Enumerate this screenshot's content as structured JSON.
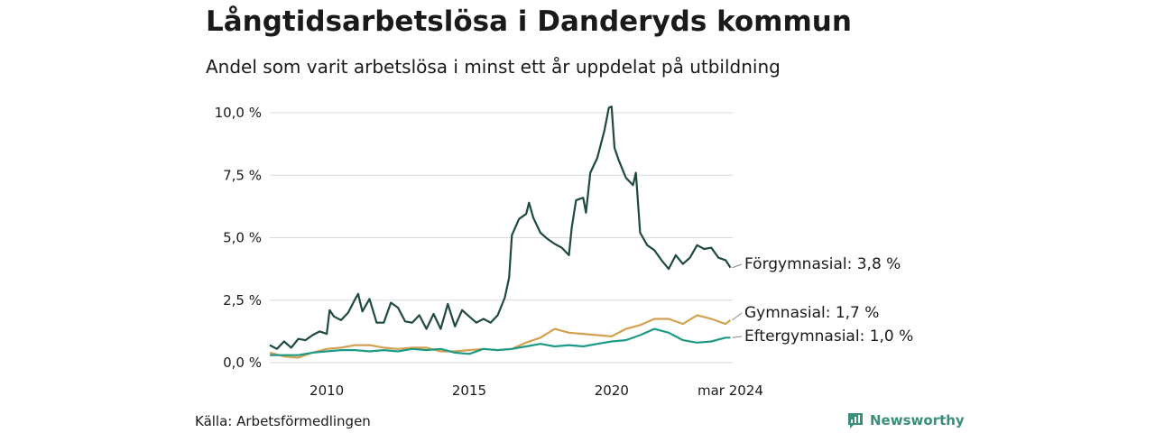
{
  "title": "Långtidsarbetslösa i Danderyds kommun",
  "subtitle": "Andel som varit arbetslösa i minst ett år uppdelat på utbildning",
  "source": "Källa: Arbetsförmedlingen",
  "brand": "Newsworthy",
  "colors": {
    "forgymnasial": "#1f4a3e",
    "gymnasial": "#d4a050",
    "eftergymnasial": "#1d9a86",
    "grid": "#d9d9d9",
    "brand": "#3a8f7a"
  },
  "chart_data": {
    "type": "line",
    "title": "Långtidsarbetslösa i Danderyds kommun",
    "subtitle": "Andel som varit arbetslösa i minst ett år uppdelat på utbildning",
    "xlabel": "",
    "ylabel": "",
    "xlim": [
      2008.0,
      2024.25
    ],
    "ylim": [
      0,
      10
    ],
    "y_ticks": [
      0,
      2.5,
      5,
      7.5,
      10
    ],
    "y_tick_labels": [
      "0,0 %",
      "2,5 %",
      "5,0 %",
      "7,5 %",
      "10,0 %"
    ],
    "x_ticks": [
      2010,
      2015,
      2020,
      2024.17
    ],
    "x_tick_labels": [
      "2010",
      "2015",
      "2020",
      "mar 2024"
    ],
    "grid": true,
    "series": [
      {
        "name": "Förgymnasial",
        "end_label": "Förgymnasial: 3,8 %",
        "color_key": "forgymnasial",
        "points": [
          [
            2008.0,
            0.7
          ],
          [
            2008.25,
            0.55
          ],
          [
            2008.5,
            0.85
          ],
          [
            2008.75,
            0.6
          ],
          [
            2009.0,
            0.95
          ],
          [
            2009.25,
            0.9
          ],
          [
            2009.5,
            1.1
          ],
          [
            2009.75,
            1.25
          ],
          [
            2010.0,
            1.15
          ],
          [
            2010.1,
            2.1
          ],
          [
            2010.25,
            1.85
          ],
          [
            2010.5,
            1.7
          ],
          [
            2010.75,
            2.0
          ],
          [
            2011.0,
            2.55
          ],
          [
            2011.1,
            2.75
          ],
          [
            2011.25,
            2.05
          ],
          [
            2011.5,
            2.55
          ],
          [
            2011.75,
            1.6
          ],
          [
            2012.0,
            1.6
          ],
          [
            2012.25,
            2.4
          ],
          [
            2012.5,
            2.2
          ],
          [
            2012.75,
            1.65
          ],
          [
            2013.0,
            1.6
          ],
          [
            2013.25,
            1.9
          ],
          [
            2013.5,
            1.35
          ],
          [
            2013.75,
            1.95
          ],
          [
            2014.0,
            1.35
          ],
          [
            2014.25,
            2.35
          ],
          [
            2014.5,
            1.45
          ],
          [
            2014.75,
            2.1
          ],
          [
            2015.0,
            1.85
          ],
          [
            2015.25,
            1.6
          ],
          [
            2015.5,
            1.75
          ],
          [
            2015.75,
            1.6
          ],
          [
            2016.0,
            1.9
          ],
          [
            2016.25,
            2.6
          ],
          [
            2016.4,
            3.4
          ],
          [
            2016.5,
            5.1
          ],
          [
            2016.75,
            5.75
          ],
          [
            2017.0,
            5.95
          ],
          [
            2017.1,
            6.4
          ],
          [
            2017.25,
            5.8
          ],
          [
            2017.5,
            5.2
          ],
          [
            2017.75,
            4.95
          ],
          [
            2018.0,
            4.75
          ],
          [
            2018.25,
            4.6
          ],
          [
            2018.5,
            4.3
          ],
          [
            2018.6,
            5.4
          ],
          [
            2018.75,
            6.5
          ],
          [
            2019.0,
            6.6
          ],
          [
            2019.1,
            6.0
          ],
          [
            2019.25,
            7.6
          ],
          [
            2019.5,
            8.2
          ],
          [
            2019.75,
            9.3
          ],
          [
            2019.9,
            10.2
          ],
          [
            2020.0,
            10.25
          ],
          [
            2020.1,
            8.6
          ],
          [
            2020.25,
            8.1
          ],
          [
            2020.5,
            7.4
          ],
          [
            2020.75,
            7.1
          ],
          [
            2020.85,
            7.6
          ],
          [
            2021.0,
            5.2
          ],
          [
            2021.25,
            4.7
          ],
          [
            2021.5,
            4.5
          ],
          [
            2021.75,
            4.1
          ],
          [
            2022.0,
            3.75
          ],
          [
            2022.25,
            4.3
          ],
          [
            2022.5,
            3.95
          ],
          [
            2022.75,
            4.2
          ],
          [
            2023.0,
            4.7
          ],
          [
            2023.25,
            4.55
          ],
          [
            2023.5,
            4.6
          ],
          [
            2023.75,
            4.2
          ],
          [
            2024.0,
            4.1
          ],
          [
            2024.17,
            3.8
          ]
        ]
      },
      {
        "name": "Gymnasial",
        "end_label": "Gymnasial: 1,7 %",
        "color_key": "gymnasial",
        "points": [
          [
            2008.0,
            0.4
          ],
          [
            2008.5,
            0.25
          ],
          [
            2009.0,
            0.2
          ],
          [
            2009.5,
            0.4
          ],
          [
            2010.0,
            0.55
          ],
          [
            2010.5,
            0.6
          ],
          [
            2011.0,
            0.7
          ],
          [
            2011.5,
            0.7
          ],
          [
            2012.0,
            0.6
          ],
          [
            2012.5,
            0.55
          ],
          [
            2013.0,
            0.6
          ],
          [
            2013.5,
            0.6
          ],
          [
            2014.0,
            0.45
          ],
          [
            2014.5,
            0.45
          ],
          [
            2015.0,
            0.5
          ],
          [
            2015.5,
            0.55
          ],
          [
            2016.0,
            0.5
          ],
          [
            2016.5,
            0.55
          ],
          [
            2017.0,
            0.8
          ],
          [
            2017.5,
            1.0
          ],
          [
            2018.0,
            1.35
          ],
          [
            2018.5,
            1.2
          ],
          [
            2019.0,
            1.15
          ],
          [
            2019.5,
            1.1
          ],
          [
            2020.0,
            1.05
          ],
          [
            2020.5,
            1.35
          ],
          [
            2021.0,
            1.5
          ],
          [
            2021.5,
            1.75
          ],
          [
            2022.0,
            1.75
          ],
          [
            2022.5,
            1.55
          ],
          [
            2023.0,
            1.9
          ],
          [
            2023.5,
            1.75
          ],
          [
            2024.0,
            1.55
          ],
          [
            2024.17,
            1.7
          ]
        ]
      },
      {
        "name": "Eftergymnasial",
        "end_label": "Eftergymnasial: 1,0 %",
        "color_key": "eftergymnasial",
        "points": [
          [
            2008.0,
            0.3
          ],
          [
            2008.5,
            0.3
          ],
          [
            2009.0,
            0.3
          ],
          [
            2009.5,
            0.4
          ],
          [
            2010.0,
            0.45
          ],
          [
            2010.5,
            0.5
          ],
          [
            2011.0,
            0.5
          ],
          [
            2011.5,
            0.45
          ],
          [
            2012.0,
            0.5
          ],
          [
            2012.5,
            0.45
          ],
          [
            2013.0,
            0.55
          ],
          [
            2013.5,
            0.5
          ],
          [
            2014.0,
            0.55
          ],
          [
            2014.5,
            0.4
          ],
          [
            2015.0,
            0.35
          ],
          [
            2015.5,
            0.55
          ],
          [
            2016.0,
            0.5
          ],
          [
            2016.5,
            0.55
          ],
          [
            2017.0,
            0.65
          ],
          [
            2017.5,
            0.75
          ],
          [
            2018.0,
            0.65
          ],
          [
            2018.5,
            0.7
          ],
          [
            2019.0,
            0.65
          ],
          [
            2019.5,
            0.75
          ],
          [
            2020.0,
            0.85
          ],
          [
            2020.5,
            0.9
          ],
          [
            2021.0,
            1.1
          ],
          [
            2021.5,
            1.35
          ],
          [
            2022.0,
            1.2
          ],
          [
            2022.5,
            0.9
          ],
          [
            2023.0,
            0.8
          ],
          [
            2023.5,
            0.85
          ],
          [
            2024.0,
            1.0
          ],
          [
            2024.17,
            1.0
          ]
        ]
      }
    ]
  }
}
